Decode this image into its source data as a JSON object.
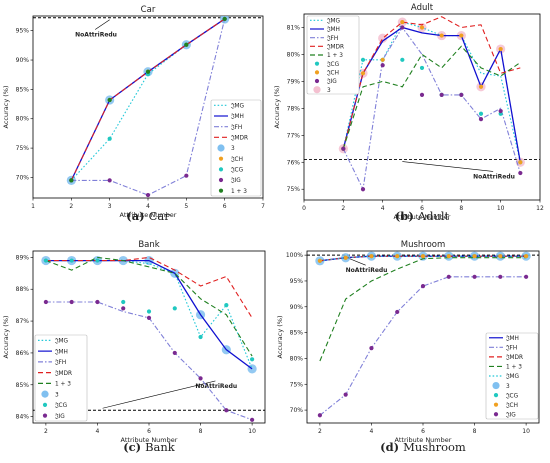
{
  "chart_data": [
    {
      "type": "line",
      "title": "Car",
      "caption_letter": "(a)",
      "caption_text": "Car",
      "xlabel": "Attribute Number",
      "ylabel": "Accuracy (%)",
      "xlim": [
        1,
        7
      ],
      "ylim": [
        66.5,
        97.5
      ],
      "xticks": [
        1,
        2,
        3,
        4,
        5,
        6,
        7
      ],
      "yticks": [
        70,
        75,
        80,
        85,
        90,
        95
      ],
      "yformat": "pct",
      "legend_position": "right",
      "baseline": {
        "label": "NoAttriRedu",
        "value": 97.2
      },
      "series": [
        {
          "name": "𝔍MG",
          "style": "dotted",
          "color": "#22c8d8",
          "marker": "none",
          "x": [
            2,
            3,
            4,
            5,
            6
          ],
          "y": [
            69.5,
            76.6,
            87.6,
            92.6,
            97.0
          ]
        },
        {
          "name": "𝔍MH",
          "style": "solid",
          "color": "#1010d0",
          "marker": "none",
          "x": [
            2,
            3,
            4,
            5,
            6
          ],
          "y": [
            69.5,
            83.2,
            88.0,
            92.6,
            97.0
          ]
        },
        {
          "name": "𝔍FH",
          "style": "dashdot",
          "color": "#8080d8",
          "marker": "none",
          "x": [
            2,
            3,
            4,
            5,
            6
          ],
          "y": [
            69.5,
            69.5,
            67.0,
            70.3,
            97.0
          ]
        },
        {
          "name": "𝔍MDR",
          "style": "dashed",
          "color": "#e02020",
          "marker": "none",
          "x": [
            2,
            3,
            4,
            5,
            6
          ],
          "y": [
            69.5,
            83.2,
            88.0,
            92.6,
            97.0
          ]
        },
        {
          "name": "3",
          "style": "none",
          "color": "#80c0f0",
          "marker": "big",
          "x": [
            2,
            3,
            4,
            5,
            6
          ],
          "y": [
            69.5,
            83.2,
            88.0,
            92.6,
            97.0
          ]
        },
        {
          "name": "𝔍CH",
          "style": "none",
          "color": "#f0a020",
          "marker": "dot",
          "x": [
            2,
            3,
            4,
            5,
            6
          ],
          "y": [
            69.5,
            83.2,
            88.0,
            92.6,
            97.0
          ]
        },
        {
          "name": "𝔍CG",
          "style": "none",
          "color": "#20c8c0",
          "marker": "dot",
          "x": [
            2,
            3,
            4,
            5,
            6
          ],
          "y": [
            69.5,
            76.6,
            87.6,
            92.6,
            97.0
          ]
        },
        {
          "name": "𝔍IG",
          "style": "none",
          "color": "#7a2a90",
          "marker": "dot",
          "x": [
            2,
            3,
            4,
            5,
            6
          ],
          "y": [
            69.5,
            69.5,
            67.0,
            70.3,
            97.0
          ]
        },
        {
          "name": "1 + 3",
          "style": "none",
          "color": "#208020",
          "marker": "dot",
          "x": [
            2,
            3,
            4,
            5,
            6
          ],
          "y": [
            69.5,
            83.2,
            88.0,
            92.6,
            97.0
          ]
        }
      ]
    },
    {
      "type": "line",
      "title": "Adult",
      "caption_letter": "(b)",
      "caption_text": "Adult",
      "xlabel": "Attribute Number",
      "ylabel": "Accuracy (%)",
      "xlim": [
        0,
        12
      ],
      "ylim": [
        74.6,
        81.5
      ],
      "xticks": [
        0,
        2,
        4,
        6,
        8,
        10,
        12
      ],
      "yticks": [
        75,
        76,
        77,
        78,
        79,
        80,
        81
      ],
      "yformat": "pct",
      "legend_position": "top-left",
      "baseline": {
        "label": "NoAttriRedu",
        "value": 76.1
      },
      "series": [
        {
          "name": "𝔍MG",
          "style": "dotted",
          "color": "#22c8d8",
          "marker": "none",
          "x": [
            2,
            3,
            4,
            5,
            6,
            7,
            8,
            9,
            10,
            11
          ],
          "y": [
            76.5,
            79.8,
            79.8,
            81.2,
            81.0,
            80.7,
            80.7,
            79.3,
            79.2,
            76.0
          ]
        },
        {
          "name": "𝔍MH",
          "style": "solid",
          "color": "#1010d0",
          "marker": "none",
          "x": [
            2,
            3,
            4,
            5,
            6,
            7,
            8,
            9,
            10,
            11
          ],
          "y": [
            76.5,
            79.3,
            80.5,
            81.0,
            80.8,
            80.7,
            80.7,
            78.8,
            80.2,
            76.0
          ]
        },
        {
          "name": "𝔍FH",
          "style": "dashdot",
          "color": "#8080d8",
          "marker": "none",
          "x": [
            2,
            3,
            4,
            5,
            6,
            7,
            8,
            9,
            10,
            11
          ],
          "y": [
            76.5,
            75.0,
            79.8,
            81.0,
            80.0,
            78.5,
            78.5,
            77.6,
            78.0,
            75.6
          ]
        },
        {
          "name": "𝔍MDR",
          "style": "dashed",
          "color": "#e02020",
          "marker": "none",
          "x": [
            2,
            3,
            4,
            5,
            6,
            7,
            8,
            9,
            10,
            11
          ],
          "y": [
            76.5,
            79.3,
            80.6,
            81.2,
            81.1,
            81.4,
            81.0,
            81.1,
            79.3,
            79.5
          ]
        },
        {
          "name": "1 + 3",
          "style": "dashed",
          "color": "#208020",
          "marker": "none",
          "x": [
            2,
            3,
            4,
            5,
            6,
            7,
            8,
            9,
            10,
            11
          ],
          "y": [
            76.5,
            78.8,
            79.0,
            78.8,
            80.0,
            79.5,
            80.3,
            79.5,
            79.2,
            79.7
          ]
        },
        {
          "name": "𝔍CG",
          "style": "none",
          "color": "#20c8c0",
          "marker": "dot",
          "x": [
            2,
            3,
            4,
            5,
            6,
            7,
            8,
            9,
            10,
            11
          ],
          "y": [
            76.5,
            79.8,
            79.8,
            79.8,
            79.5,
            78.5,
            78.5,
            77.8,
            77.8,
            76.0
          ]
        },
        {
          "name": "𝔍CH",
          "style": "none",
          "color": "#f0a020",
          "marker": "dot",
          "x": [
            2,
            3,
            4,
            5,
            6,
            7,
            8,
            9,
            10,
            11
          ],
          "y": [
            76.5,
            79.3,
            79.8,
            81.2,
            81.0,
            80.7,
            80.7,
            78.8,
            80.2,
            76.0
          ]
        },
        {
          "name": "𝔍IG",
          "style": "none",
          "color": "#7a2a90",
          "marker": "dot",
          "x": [
            2,
            3,
            4,
            5,
            6,
            7,
            8,
            9,
            10,
            11
          ],
          "y": [
            76.5,
            75.0,
            79.6,
            81.0,
            78.5,
            78.5,
            78.5,
            77.6,
            77.9,
            75.6
          ]
        },
        {
          "name": "3",
          "style": "none",
          "color": "#f4c0d0",
          "marker": "big",
          "x": [
            2,
            3,
            4,
            5,
            6,
            7,
            8,
            9,
            10,
            11
          ],
          "y": [
            76.5,
            79.3,
            80.6,
            81.2,
            81.0,
            80.7,
            80.7,
            78.8,
            80.2,
            76.0
          ]
        }
      ]
    },
    {
      "type": "line",
      "title": "Bank",
      "caption_letter": "(c)",
      "caption_text": "Bank",
      "xlabel": "Attribute Number",
      "ylabel": "Accuracy (%)",
      "xlim": [
        1.5,
        10.5
      ],
      "ylim": [
        83.8,
        89.2
      ],
      "xticks": [
        2,
        4,
        6,
        8,
        10
      ],
      "yticks": [
        84,
        85,
        86,
        87,
        88,
        89
      ],
      "yformat": "pct",
      "legend_position": "bottom-left",
      "baseline": {
        "label": "NoAttriRedu",
        "value": 84.2
      },
      "series": [
        {
          "name": "𝔍MG",
          "style": "dotted",
          "color": "#22c8d8",
          "marker": "none",
          "x": [
            2,
            3,
            4,
            5,
            6,
            7,
            8,
            9,
            10
          ],
          "y": [
            88.9,
            88.9,
            88.9,
            88.9,
            88.8,
            88.5,
            86.5,
            87.5,
            85.5
          ]
        },
        {
          "name": "𝔍MH",
          "style": "solid",
          "color": "#1010d0",
          "marker": "none",
          "x": [
            2,
            3,
            4,
            5,
            6,
            7,
            8,
            9,
            10
          ],
          "y": [
            88.9,
            88.9,
            88.9,
            88.9,
            88.9,
            88.5,
            87.2,
            86.1,
            85.5
          ]
        },
        {
          "name": "𝔍FH",
          "style": "dashdot",
          "color": "#8080d8",
          "marker": "none",
          "x": [
            2,
            3,
            4,
            5,
            6,
            7,
            8,
            9,
            10
          ],
          "y": [
            87.6,
            87.6,
            87.6,
            87.3,
            87.1,
            86.0,
            85.2,
            84.2,
            83.9
          ]
        },
        {
          "name": "𝔍MDR",
          "style": "dashed",
          "color": "#e02020",
          "marker": "none",
          "x": [
            2,
            3,
            4,
            5,
            6,
            7,
            8,
            9,
            10
          ],
          "y": [
            88.9,
            88.9,
            88.9,
            88.9,
            89.0,
            88.6,
            88.1,
            88.4,
            87.1
          ]
        },
        {
          "name": "1 + 3",
          "style": "dashed",
          "color": "#208020",
          "marker": "none",
          "x": [
            2,
            3,
            4,
            5,
            6,
            7,
            8,
            9,
            10
          ],
          "y": [
            88.9,
            88.6,
            89.0,
            88.9,
            88.7,
            88.5,
            87.7,
            87.2,
            85.9
          ]
        },
        {
          "name": "3",
          "style": "none",
          "color": "#80c0f0",
          "marker": "big",
          "x": [
            2,
            3,
            4,
            5,
            6,
            7,
            8,
            9,
            10
          ],
          "y": [
            88.9,
            88.9,
            88.9,
            88.9,
            88.9,
            88.5,
            87.2,
            86.1,
            85.5
          ]
        },
        {
          "name": "𝔍CG",
          "style": "none",
          "color": "#20c8c0",
          "marker": "dot",
          "x": [
            2,
            3,
            4,
            5,
            6,
            7,
            8,
            9,
            10
          ],
          "y": [
            88.9,
            88.9,
            88.9,
            87.6,
            87.3,
            87.4,
            86.5,
            87.5,
            85.8
          ]
        },
        {
          "name": "𝔍IG",
          "style": "none",
          "color": "#7a2a90",
          "marker": "dot",
          "x": [
            2,
            3,
            4,
            5,
            6,
            7,
            8,
            9,
            10
          ],
          "y": [
            87.6,
            87.6,
            87.6,
            87.4,
            87.1,
            86.0,
            85.2,
            84.2,
            83.9
          ]
        }
      ]
    },
    {
      "type": "line",
      "title": "Mushroom",
      "caption_letter": "(d)",
      "caption_text": "Mushroom",
      "xlabel": "Attribute Number",
      "ylabel": "Accuracy (%)",
      "xlim": [
        1.5,
        10.5
      ],
      "ylim": [
        67.5,
        100.8
      ],
      "xticks": [
        2,
        4,
        6,
        8,
        10
      ],
      "yticks": [
        70,
        75,
        80,
        85,
        90,
        95,
        100
      ],
      "yformat": "pct",
      "legend_position": "right",
      "baseline": {
        "label": "NoAttriRedu",
        "value": 100
      },
      "series": [
        {
          "name": "𝔍MH",
          "style": "solid",
          "color": "#1010d0",
          "marker": "none",
          "x": [
            2,
            3,
            4,
            5,
            6,
            7,
            8,
            9,
            10
          ],
          "y": [
            98.9,
            99.5,
            99.8,
            99.8,
            99.8,
            99.8,
            99.8,
            99.8,
            99.8
          ]
        },
        {
          "name": "𝔍FH",
          "style": "dashdot",
          "color": "#8080d8",
          "marker": "none",
          "x": [
            2,
            3,
            4,
            5,
            6,
            7,
            8,
            9,
            10
          ],
          "y": [
            69.0,
            73.0,
            82.0,
            89.0,
            94.0,
            95.8,
            95.8,
            95.8,
            95.8
          ]
        },
        {
          "name": "𝔍MDR",
          "style": "dashed",
          "color": "#e02020",
          "marker": "none",
          "x": [
            2,
            3,
            4,
            5,
            6,
            7,
            8,
            9,
            10
          ],
          "y": [
            98.9,
            99.5,
            99.8,
            99.8,
            99.8,
            99.8,
            99.8,
            99.8,
            99.8
          ]
        },
        {
          "name": "1 + 3",
          "style": "dashed",
          "color": "#208020",
          "marker": "none",
          "x": [
            2,
            3,
            4,
            5,
            6,
            7,
            8,
            9,
            10
          ],
          "y": [
            79.5,
            91.5,
            95.0,
            97.3,
            99.3,
            99.5,
            99.5,
            99.5,
            99.5
          ]
        },
        {
          "name": "𝔍MG",
          "style": "dotted",
          "color": "#22c8d8",
          "marker": "none",
          "x": [
            2,
            3,
            4,
            5,
            6,
            7,
            8,
            9,
            10
          ],
          "y": [
            98.9,
            99.5,
            99.8,
            99.8,
            99.8,
            99.8,
            99.8,
            99.8,
            99.8
          ]
        },
        {
          "name": "3",
          "style": "none",
          "color": "#80c0f0",
          "marker": "big",
          "x": [
            2,
            3,
            4,
            5,
            6,
            7,
            8,
            9,
            10
          ],
          "y": [
            98.9,
            99.5,
            99.8,
            99.8,
            99.8,
            99.8,
            99.8,
            99.8,
            99.8
          ]
        },
        {
          "name": "𝔍CG",
          "style": "none",
          "color": "#20c8c0",
          "marker": "dot",
          "x": [
            2,
            3,
            4,
            5,
            6,
            7,
            8,
            9,
            10
          ],
          "y": [
            98.9,
            99.5,
            99.8,
            99.8,
            99.8,
            99.8,
            99.8,
            99.8,
            99.8
          ]
        },
        {
          "name": "𝔍CH",
          "style": "none",
          "color": "#f0a020",
          "marker": "dot",
          "x": [
            2,
            3,
            4,
            5,
            6,
            7,
            8,
            9,
            10
          ],
          "y": [
            98.9,
            99.5,
            99.8,
            99.8,
            99.8,
            99.8,
            99.8,
            99.8,
            99.8
          ]
        },
        {
          "name": "𝔍IG",
          "style": "none",
          "color": "#7a2a90",
          "marker": "dot",
          "x": [
            2,
            3,
            4,
            5,
            6,
            7,
            8,
            9,
            10
          ],
          "y": [
            69.0,
            73.0,
            82.0,
            89.0,
            94.0,
            95.8,
            95.8,
            95.8,
            95.8
          ]
        }
      ]
    }
  ]
}
